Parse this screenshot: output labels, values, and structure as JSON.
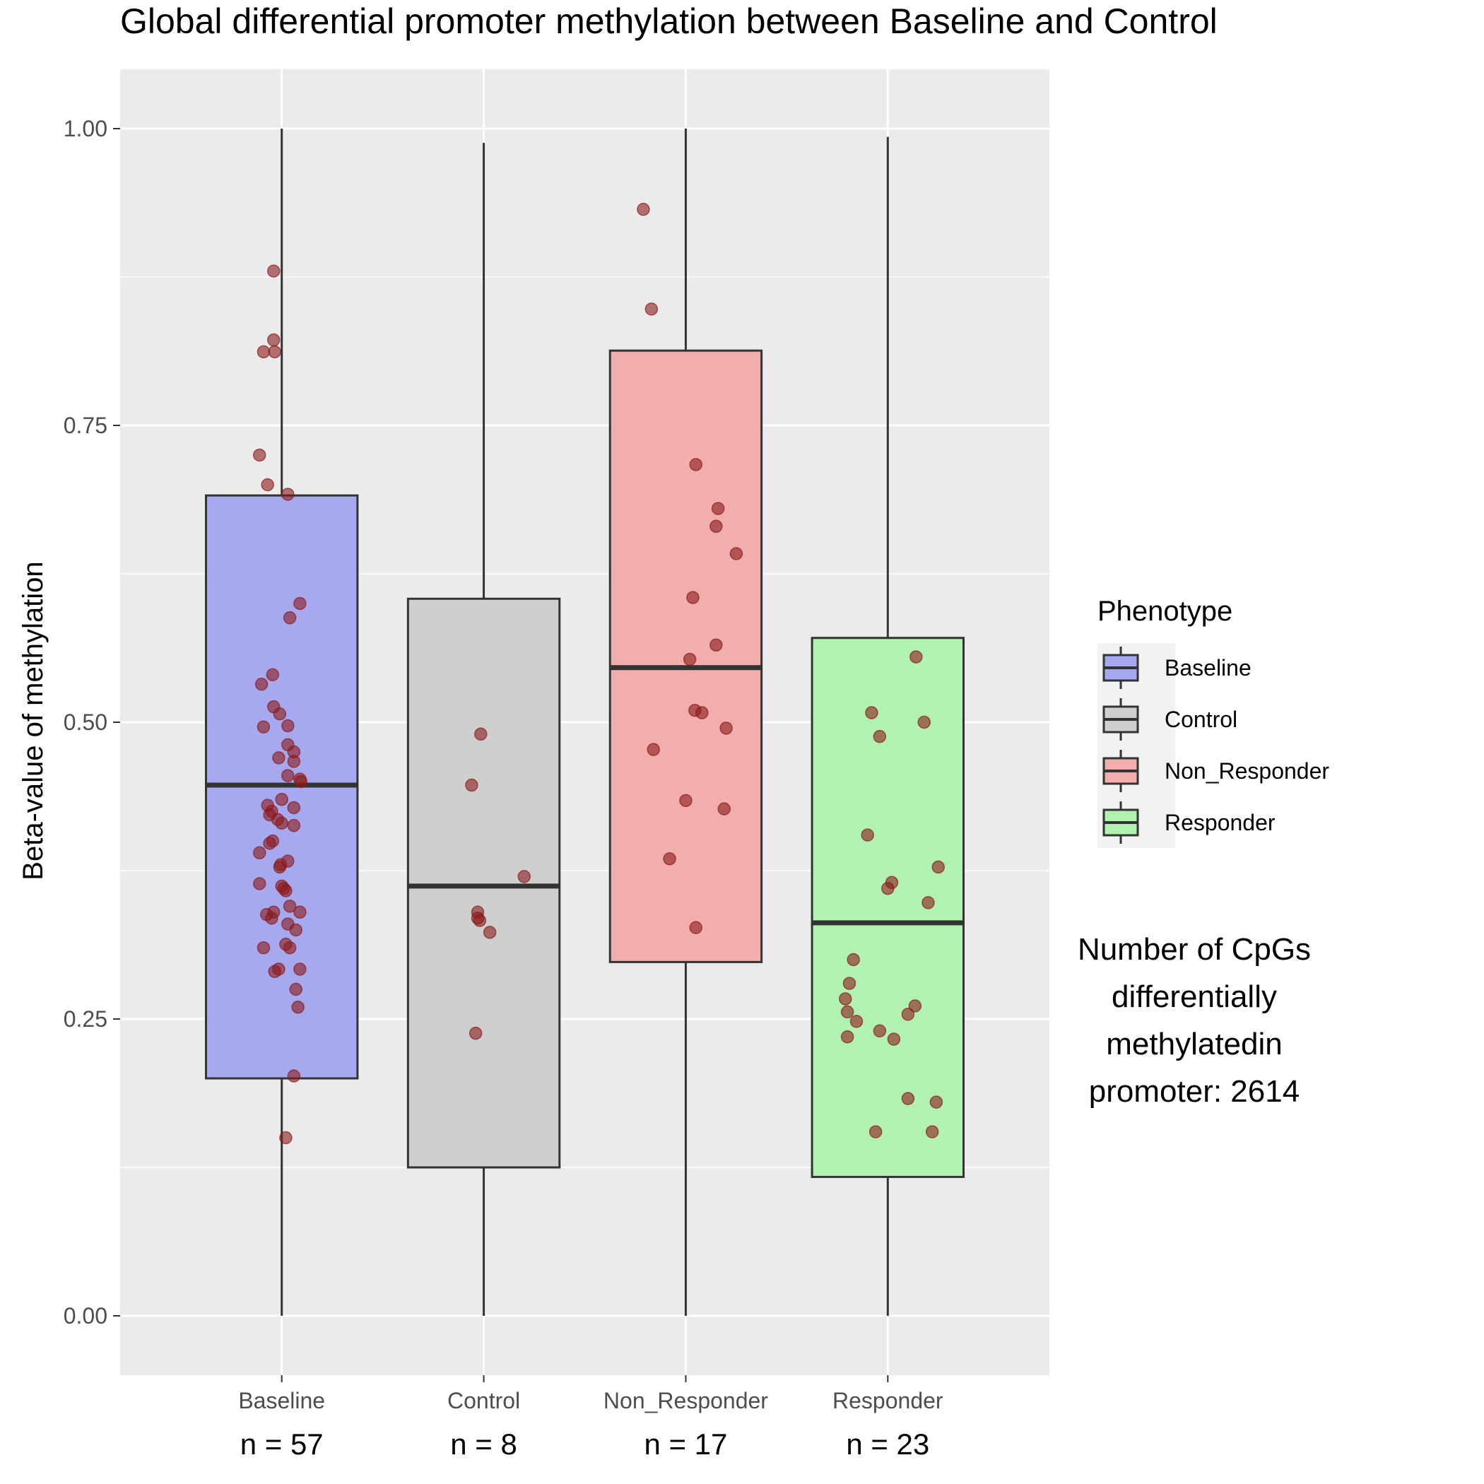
{
  "chart_data": {
    "type": "box",
    "title": "Global differential promoter methylation between Baseline and Control",
    "xlabel": "",
    "ylabel": "Beta-value of methylation",
    "ylim": [
      -0.05,
      1.05
    ],
    "yticks": [
      0.0,
      0.25,
      0.5,
      0.75,
      1.0
    ],
    "ytick_labels": [
      "0.00",
      "0.25",
      "0.50",
      "0.75",
      "1.00"
    ],
    "grid": true,
    "legend": {
      "title": "Phenotype",
      "position": "right",
      "entries": [
        "Baseline",
        "Control",
        "Non_Responder",
        "Responder"
      ]
    },
    "annotation_lines": [
      "Number of CpGs",
      "differentially",
      "methylatedin",
      "promoter: 2614"
    ],
    "n_labels": [
      "n = 57",
      "n = 8",
      "n = 17",
      "n = 23"
    ],
    "point_color": "#8b1a1a",
    "groups": [
      {
        "name": "Baseline",
        "color": "#a7a9f0",
        "whisker_low": 0.0,
        "q1": 0.2,
        "median": 0.447,
        "q3": 0.691,
        "whisker_high": 1.0,
        "points": [
          [
            -0.04,
            0.88
          ],
          [
            -0.04,
            0.822
          ],
          [
            -0.09,
            0.812
          ],
          [
            -0.035,
            0.812
          ],
          [
            -0.11,
            0.725
          ],
          [
            -0.07,
            0.7
          ],
          [
            0.03,
            0.692
          ],
          [
            0.09,
            0.6
          ],
          [
            0.04,
            0.588
          ],
          [
            -0.1,
            0.532
          ],
          [
            -0.045,
            0.54
          ],
          [
            -0.04,
            0.513
          ],
          [
            -0.01,
            0.507
          ],
          [
            -0.09,
            0.496
          ],
          [
            0.03,
            0.497
          ],
          [
            0.03,
            0.481
          ],
          [
            0.06,
            0.475
          ],
          [
            -0.015,
            0.47
          ],
          [
            0.06,
            0.467
          ],
          [
            0.09,
            0.452
          ],
          [
            0.095,
            0.45
          ],
          [
            0.03,
            0.455
          ],
          [
            0.0,
            0.435
          ],
          [
            -0.07,
            0.43
          ],
          [
            0.06,
            0.428
          ],
          [
            -0.05,
            0.425
          ],
          [
            -0.06,
            0.422
          ],
          [
            -0.02,
            0.418
          ],
          [
            0.0,
            0.415
          ],
          [
            0.06,
            0.413
          ],
          [
            -0.045,
            0.4
          ],
          [
            -0.06,
            0.398
          ],
          [
            -0.11,
            0.39
          ],
          [
            0.03,
            0.383
          ],
          [
            -0.01,
            0.378
          ],
          [
            -0.005,
            0.38
          ],
          [
            -0.11,
            0.364
          ],
          [
            0.0,
            0.362
          ],
          [
            0.01,
            0.36
          ],
          [
            0.02,
            0.358
          ],
          [
            0.04,
            0.345
          ],
          [
            -0.04,
            0.34
          ],
          [
            -0.075,
            0.338
          ],
          [
            0.09,
            0.34
          ],
          [
            -0.05,
            0.335
          ],
          [
            0.03,
            0.33
          ],
          [
            0.07,
            0.325
          ],
          [
            0.02,
            0.313
          ],
          [
            0.04,
            0.31
          ],
          [
            -0.09,
            0.31
          ],
          [
            -0.035,
            0.29
          ],
          [
            -0.015,
            0.292
          ],
          [
            0.09,
            0.292
          ],
          [
            0.07,
            0.275
          ],
          [
            0.08,
            0.26
          ],
          [
            0.06,
            0.202
          ],
          [
            0.02,
            0.15
          ]
        ]
      },
      {
        "name": "Control",
        "color": "#cfcfcf",
        "whisker_low": 0.0,
        "q1": 0.125,
        "median": 0.362,
        "q3": 0.604,
        "whisker_high": 0.988,
        "points": [
          [
            -0.06,
            0.447
          ],
          [
            -0.015,
            0.49
          ],
          [
            0.2,
            0.37
          ],
          [
            -0.03,
            0.34
          ],
          [
            -0.03,
            0.335
          ],
          [
            -0.02,
            0.333
          ],
          [
            0.03,
            0.323
          ],
          [
            -0.04,
            0.238
          ]
        ]
      },
      {
        "name": "Non_Responder",
        "color": "#f2adad",
        "whisker_low": 0.0,
        "q1": 0.298,
        "median": 0.546,
        "q3": 0.813,
        "whisker_high": 1.0,
        "points": [
          [
            -0.21,
            0.932
          ],
          [
            -0.17,
            0.848
          ],
          [
            0.05,
            0.717
          ],
          [
            0.16,
            0.68
          ],
          [
            0.15,
            0.665
          ],
          [
            0.25,
            0.642
          ],
          [
            0.035,
            0.605
          ],
          [
            0.15,
            0.565
          ],
          [
            0.02,
            0.553
          ],
          [
            0.045,
            0.51
          ],
          [
            0.08,
            0.508
          ],
          [
            0.2,
            0.495
          ],
          [
            -0.16,
            0.477
          ],
          [
            0.0,
            0.434
          ],
          [
            0.19,
            0.427
          ],
          [
            -0.08,
            0.385
          ],
          [
            0.05,
            0.327
          ]
        ]
      },
      {
        "name": "Responder",
        "color": "#b2f2b0",
        "whisker_low": 0.0,
        "q1": 0.117,
        "median": 0.331,
        "q3": 0.571,
        "whisker_high": 0.993,
        "points": [
          [
            0.14,
            0.555
          ],
          [
            -0.08,
            0.508
          ],
          [
            0.18,
            0.5
          ],
          [
            -0.04,
            0.488
          ],
          [
            -0.1,
            0.405
          ],
          [
            0.25,
            0.378
          ],
          [
            0.02,
            0.365
          ],
          [
            0.0,
            0.36
          ],
          [
            0.2,
            0.348
          ],
          [
            -0.17,
            0.3
          ],
          [
            -0.19,
            0.28
          ],
          [
            -0.21,
            0.267
          ],
          [
            -0.2,
            0.256
          ],
          [
            -0.155,
            0.248
          ],
          [
            0.1,
            0.254
          ],
          [
            0.135,
            0.261
          ],
          [
            -0.04,
            0.24
          ],
          [
            0.03,
            0.233
          ],
          [
            -0.2,
            0.235
          ],
          [
            0.1,
            0.183
          ],
          [
            0.24,
            0.18
          ],
          [
            -0.06,
            0.155
          ],
          [
            0.22,
            0.155
          ]
        ]
      }
    ]
  }
}
